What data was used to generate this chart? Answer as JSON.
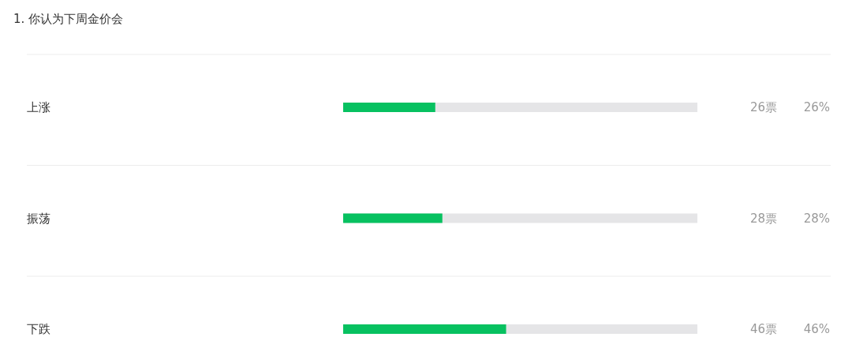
{
  "chart_data": {
    "type": "bar",
    "orientation": "horizontal",
    "title": "1. 你认为下周金价会",
    "categories": [
      "上涨",
      "振荡",
      "下跌"
    ],
    "values": [
      26,
      28,
      46
    ],
    "color": "#07c160",
    "value_labels": [
      "26票",
      "28票",
      "46票"
    ],
    "annotations": [
      "26%",
      "28%",
      "46%"
    ],
    "xlim": [
      0,
      100
    ]
  }
}
